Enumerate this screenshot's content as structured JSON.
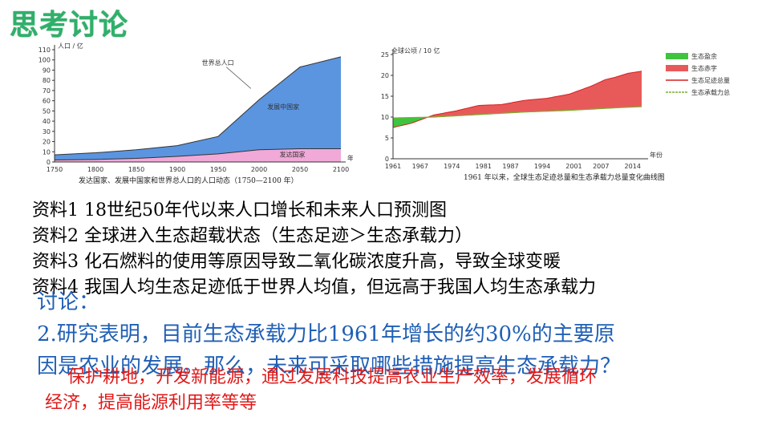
{
  "title": "思考讨论",
  "chart_data": [
    {
      "type": "area",
      "ylabel": "人口 / 亿",
      "xlabel": "年份",
      "x_ticks": [
        1750,
        1800,
        1850,
        1900,
        1950,
        2000,
        2050,
        2100
      ],
      "y_ticks": [
        0,
        10,
        20,
        30,
        40,
        50,
        60,
        70,
        80,
        90,
        100,
        110
      ],
      "ylim": [
        0,
        110
      ],
      "xlim": [
        1750,
        2100
      ],
      "series": [
        {
          "name": "发达国家",
          "color": "#f1a9d8",
          "points": [
            [
              1750,
              2
            ],
            [
              1800,
              2.5
            ],
            [
              1850,
              3.5
            ],
            [
              1900,
              5.5
            ],
            [
              1950,
              8
            ],
            [
              2000,
              12
            ],
            [
              2050,
              13
            ],
            [
              2100,
              13
            ]
          ]
        },
        {
          "name": "发展中国家",
          "color": "#5b95e0",
          "points": [
            [
              1750,
              7
            ],
            [
              1800,
              9
            ],
            [
              1850,
              12
            ],
            [
              1900,
              16
            ],
            [
              1950,
              25
            ],
            [
              2000,
              61
            ],
            [
              2050,
              93
            ],
            [
              2100,
              103
            ]
          ]
        }
      ],
      "annotations": [
        "世界总人口"
      ],
      "caption": "发达国家、发展中国家和世界总人口的人口动态（1750—2100 年）"
    },
    {
      "type": "area",
      "ylabel": "全球公顷 / 10 亿",
      "xlabel": "年份",
      "x_ticks": [
        1961,
        1967,
        1974,
        1981,
        1987,
        1994,
        2001,
        2007,
        2014
      ],
      "y_ticks": [
        0,
        5,
        10,
        15,
        20,
        25
      ],
      "ylim": [
        0,
        25
      ],
      "xlim": [
        1961,
        2016
      ],
      "footprint": [
        [
          1961,
          7.5
        ],
        [
          1965,
          8.5
        ],
        [
          1970,
          10.5
        ],
        [
          1975,
          11.5
        ],
        [
          1980,
          12.8
        ],
        [
          1985,
          13
        ],
        [
          1990,
          14
        ],
        [
          1995,
          14.5
        ],
        [
          2000,
          15.5
        ],
        [
          2005,
          17.5
        ],
        [
          2008,
          19
        ],
        [
          2010,
          19.5
        ],
        [
          2013,
          20.5
        ],
        [
          2016,
          21
        ]
      ],
      "biocapacity": [
        [
          1961,
          9.8
        ],
        [
          1970,
          10
        ],
        [
          1980,
          10.6
        ],
        [
          1990,
          11.2
        ],
        [
          2000,
          11.6
        ],
        [
          2010,
          12.2
        ],
        [
          2016,
          12.5
        ]
      ],
      "legend": [
        {
          "label": "生态盈余",
          "color": "#3fc43f"
        },
        {
          "label": "生态赤字",
          "color": "#e85a5a"
        },
        {
          "label": "生态足迹总量",
          "color": "#d42020"
        },
        {
          "label": "生态承载力总量",
          "color": "#7ab030"
        }
      ],
      "caption": "1961 年以来，全球生态足迹总量和生态承载力总量变化曲线图"
    }
  ],
  "materials": [
    "资料1  18世纪50年代以来人口增长和未来人口预测图",
    "资料2  全球进入生态超载状态（生态足迹＞生态承载力）",
    "资料3  化石燃料的使用等原因导致二氧化碳浓度升高，导致全球变暖",
    "资料4  我国人均生态足迹低于世界人均值，但远高于我国人均生态承载力"
  ],
  "discussion": {
    "heading": "讨论：",
    "line1": "2.研究表明，目前生态承载力比1961年增长的约30%的主要原",
    "line2": "因是农业的发展。那么，未来可采取哪些措施提高生态承载力？"
  },
  "answer": {
    "line1": "保护耕地，开发新能源，通过发展科技提高农业生产效率，发展循环",
    "line2": "经济，提高能源利用率等等"
  }
}
